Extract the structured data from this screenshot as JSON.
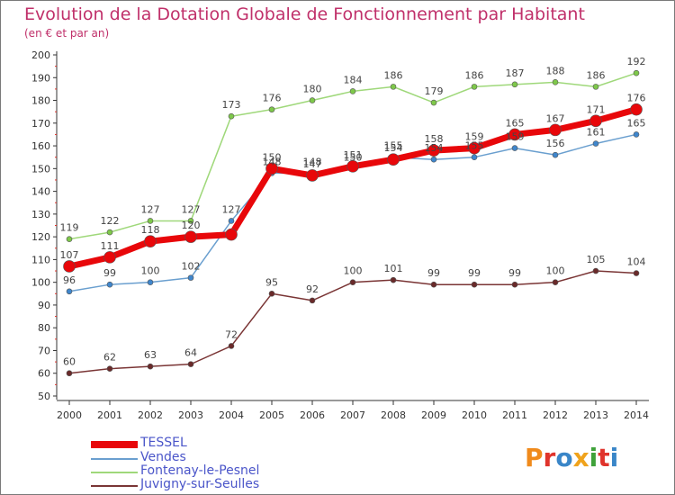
{
  "header": {
    "title": "Evolution de la Dotation Globale de Fonctionnement par Habitant",
    "subtitle": "(en € et par an)"
  },
  "colors": {
    "background": "#ffffff",
    "title": "#c0306a",
    "axis": "#333333",
    "legend_text": "#4a55c9"
  },
  "logo": {
    "text": "Proxiti"
  },
  "chart_data": {
    "type": "line",
    "x": [
      "2000",
      "2001",
      "2002",
      "2003",
      "2004",
      "2005",
      "2006",
      "2007",
      "2008",
      "2009",
      "2010",
      "2011",
      "2012",
      "2013",
      "2014"
    ],
    "ylim": [
      50,
      200
    ],
    "yticks": [
      50,
      60,
      70,
      80,
      90,
      100,
      110,
      120,
      130,
      140,
      150,
      160,
      170,
      180,
      190,
      200
    ],
    "grid": false,
    "legend_position": "bottom-left",
    "series": [
      {
        "name": "TESSEL",
        "color": "#e8070a",
        "marker": "#e8070a",
        "width": 7,
        "radius": 6.5,
        "values": [
          107,
          111,
          118,
          120,
          121,
          150,
          147,
          151,
          154,
          158,
          159,
          165,
          167,
          171,
          176
        ],
        "labels": [
          "107",
          "111",
          "118",
          "120",
          "",
          "150",
          "147",
          "151",
          "154",
          "158",
          "159",
          "165",
          "167",
          "171",
          "176"
        ]
      },
      {
        "name": "Vendes",
        "color": "#6a9fcf",
        "marker": "#3f86cc",
        "width": 1.5,
        "radius": 3,
        "values": [
          96,
          99,
          100,
          102,
          127,
          148,
          148,
          150,
          155,
          154,
          155,
          159,
          156,
          161,
          165
        ],
        "labels": [
          "96",
          "99",
          "100",
          "102",
          "127",
          "148",
          "148",
          "150",
          "155",
          "154",
          "155",
          "159",
          "156",
          "161",
          "165"
        ]
      },
      {
        "name": "Fontenay-le-Pesnel",
        "color": "#9fd87a",
        "marker": "#7ec84a",
        "width": 1.5,
        "radius": 3,
        "values": [
          119,
          122,
          127,
          127,
          173,
          176,
          180,
          184,
          186,
          179,
          186,
          187,
          188,
          186,
          192
        ],
        "labels": [
          "119",
          "122",
          "127",
          "127",
          "173",
          "176",
          "180",
          "184",
          "186",
          "179",
          "186",
          "187",
          "188",
          "186",
          "192"
        ]
      },
      {
        "name": "Juvigny-sur-Seulles",
        "color": "#7a3535",
        "marker": "#6a2a2a",
        "width": 1.5,
        "radius": 3,
        "values": [
          60,
          62,
          63,
          64,
          72,
          95,
          92,
          100,
          101,
          99,
          99,
          99,
          100,
          105,
          104
        ],
        "labels": [
          "60",
          "62",
          "63",
          "64",
          "72",
          "95",
          "92",
          "100",
          "101",
          "99",
          "99",
          "99",
          "100",
          "105",
          "104"
        ]
      }
    ]
  }
}
